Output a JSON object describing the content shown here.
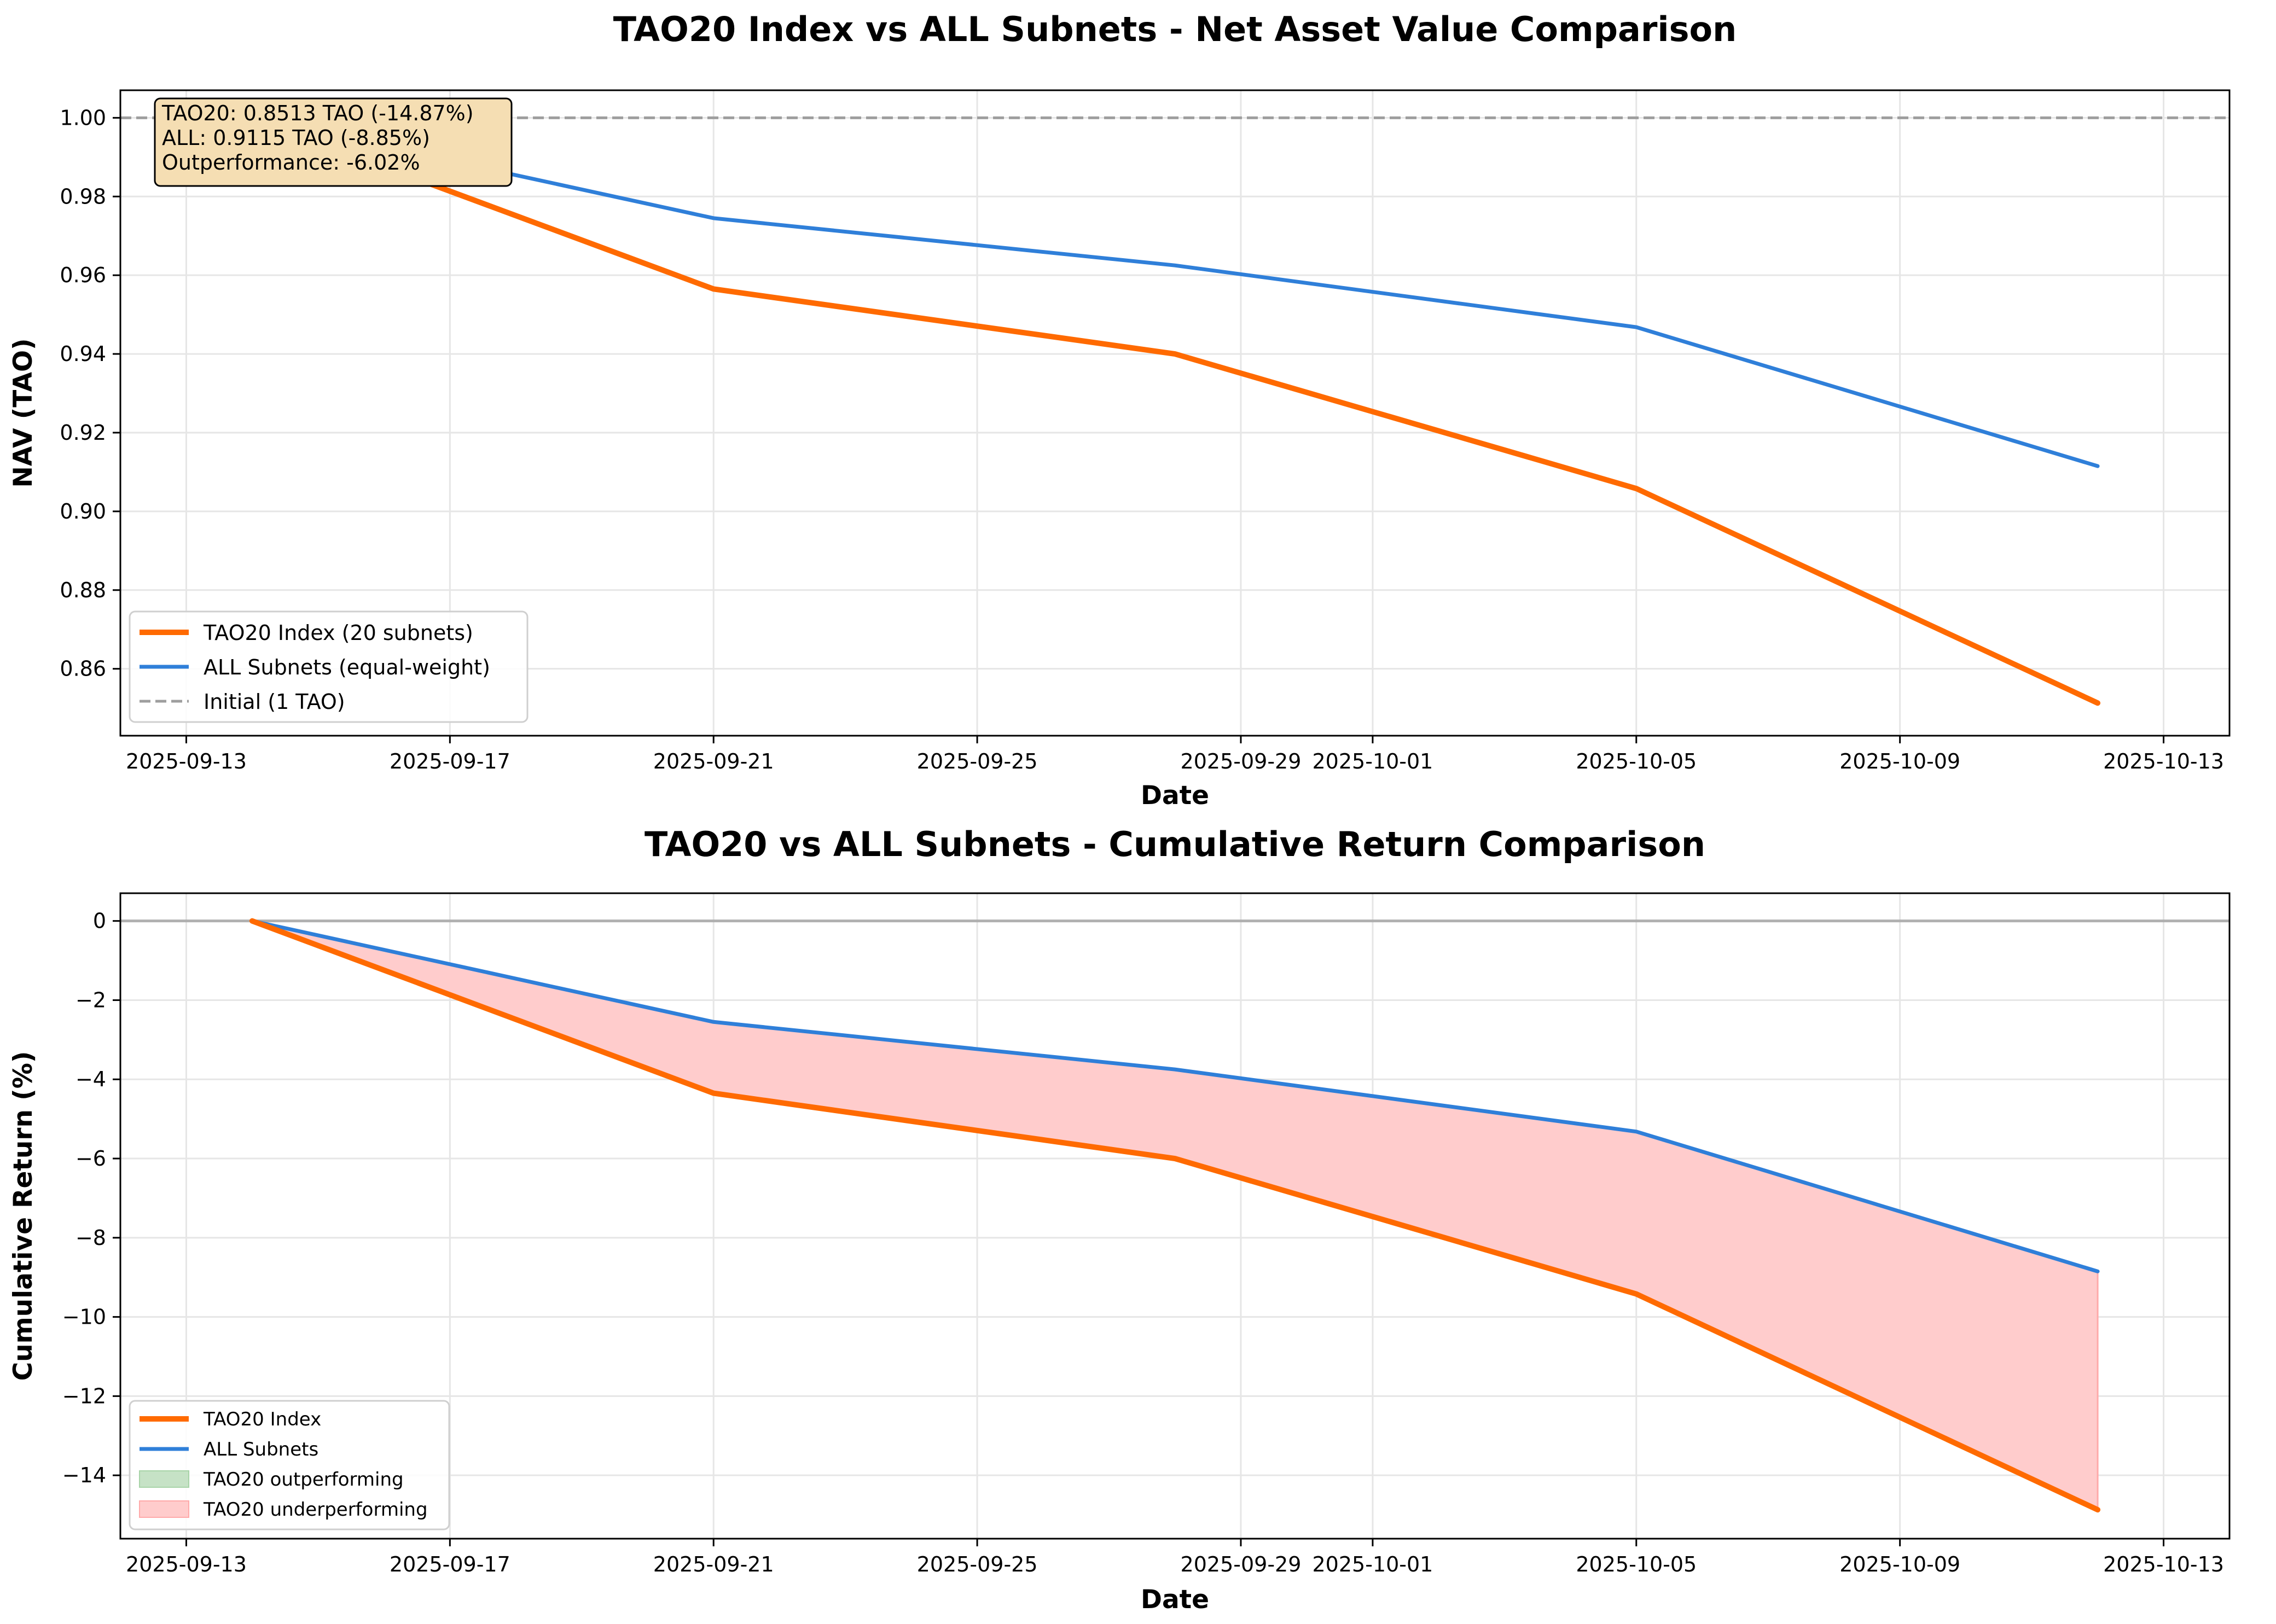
{
  "colors": {
    "tao20": "#ff6a00",
    "all": "#2f7fd9",
    "initial": "#9e9e9e",
    "outperform_fill": "#c6e2c6",
    "underperform_fill": "#ffcccc",
    "underperform_edge": "#ffaaaa",
    "annotation_fill": "#f5deb3",
    "grid": "#e6e6e6",
    "zero_line": "#b0b0b0"
  },
  "chart_data": [
    {
      "type": "line",
      "title": "TAO20 Index vs ALL Subnets - Net Asset Value Comparison",
      "xlabel": "Date",
      "ylabel": "NAV (TAO)",
      "x_type": "date",
      "xlim": [
        "2025-09-12",
        "2025-10-14"
      ],
      "ylim": [
        0.843,
        1.007
      ],
      "xticks": [
        "2025-09-13",
        "2025-09-17",
        "2025-09-21",
        "2025-09-25",
        "2025-09-29",
        "2025-10-01",
        "2025-10-05",
        "2025-10-09",
        "2025-10-13"
      ],
      "yticks": [
        0.86,
        0.88,
        0.9,
        0.92,
        0.94,
        0.96,
        0.98,
        1.0
      ],
      "ytick_labels": [
        "0.86",
        "0.88",
        "0.90",
        "0.92",
        "0.94",
        "0.96",
        "0.98",
        "1.00"
      ],
      "grid": true,
      "legend_position": "lower-left",
      "series": [
        {
          "name": "TAO20 Index (20 subnets)",
          "color": "#ff6a00",
          "x": [
            "2025-09-14",
            "2025-09-21",
            "2025-09-28",
            "2025-10-05",
            "2025-10-12"
          ],
          "y": [
            1.0,
            0.9565,
            0.94,
            0.9058,
            0.8513
          ]
        },
        {
          "name": "ALL Subnets (equal-weight)",
          "color": "#2f7fd9",
          "x": [
            "2025-09-14",
            "2025-09-21",
            "2025-09-28",
            "2025-10-05",
            "2025-10-12"
          ],
          "y": [
            1.0,
            0.9745,
            0.9625,
            0.9468,
            0.9115
          ]
        }
      ],
      "reference_line": {
        "name": "Initial (1 TAO)",
        "y": 1.0,
        "style": "dashed",
        "color": "#9e9e9e"
      },
      "annotation": {
        "lines": [
          "TAO20: 0.8513 TAO (-14.87%)",
          "ALL: 0.9115 TAO (-8.85%)",
          "Outperformance: -6.02%"
        ],
        "placement": "top-left"
      }
    },
    {
      "type": "area",
      "title": "TAO20 vs ALL Subnets - Cumulative Return Comparison",
      "xlabel": "Date",
      "ylabel": "Cumulative Return (%)",
      "x_type": "date",
      "xlim": [
        "2025-09-12",
        "2025-10-14"
      ],
      "ylim": [
        -15.6,
        0.7
      ],
      "xticks": [
        "2025-09-13",
        "2025-09-17",
        "2025-09-21",
        "2025-09-25",
        "2025-09-29",
        "2025-10-01",
        "2025-10-05",
        "2025-10-09",
        "2025-10-13"
      ],
      "yticks": [
        0,
        -2,
        -4,
        -6,
        -8,
        -10,
        -12,
        -14
      ],
      "ytick_labels": [
        "0",
        "−2",
        "−4",
        "−6",
        "−8",
        "−10",
        "−12",
        "−14"
      ],
      "grid": true,
      "legend_position": "lower-left",
      "series": [
        {
          "name": "TAO20 Index",
          "color": "#ff6a00",
          "x": [
            "2025-09-14",
            "2025-09-21",
            "2025-09-28",
            "2025-10-05",
            "2025-10-12"
          ],
          "y": [
            0.0,
            -4.35,
            -6.0,
            -9.42,
            -14.87
          ]
        },
        {
          "name": "ALL Subnets",
          "color": "#2f7fd9",
          "x": [
            "2025-09-14",
            "2025-09-21",
            "2025-09-28",
            "2025-10-05",
            "2025-10-12"
          ],
          "y": [
            0.0,
            -2.55,
            -3.75,
            -5.32,
            -8.85
          ]
        }
      ],
      "reference_line": {
        "y": 0,
        "style": "solid",
        "color": "#b0b0b0"
      },
      "fill_legend": [
        {
          "name": "TAO20 outperforming",
          "color": "#c6e2c6"
        },
        {
          "name": "TAO20 underperforming",
          "color": "#ffcccc"
        }
      ]
    }
  ]
}
